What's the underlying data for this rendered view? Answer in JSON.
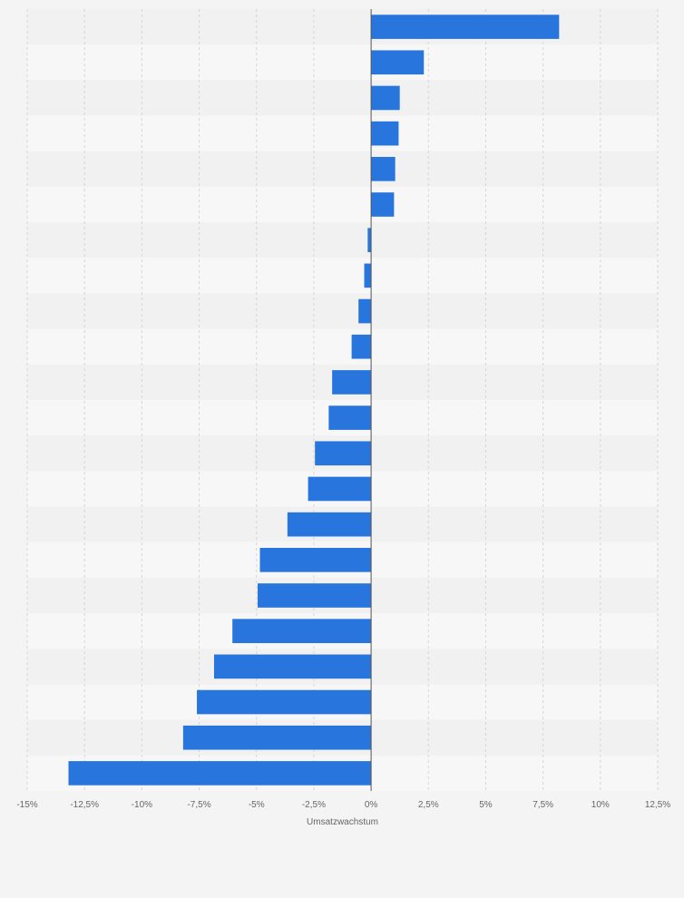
{
  "chart_data": {
    "type": "bar",
    "orientation": "horizontal",
    "title": "",
    "xlabel": "Umsatzwachstum",
    "ylabel": "",
    "xlim": [
      -15,
      12.5
    ],
    "x_ticks": [
      -15,
      -12.5,
      -10,
      -7.5,
      -5,
      -2.5,
      0,
      2.5,
      5,
      7.5,
      10,
      12.5
    ],
    "x_tick_labels": [
      "-15%",
      "-12,5%",
      "-10%",
      "-7,5%",
      "-5%",
      "-2,5%",
      "0%",
      "2,5%",
      "5%",
      "7,5%",
      "10%",
      "12,5%"
    ],
    "categories_visible": false,
    "values": [
      8.2,
      2.3,
      1.25,
      1.2,
      1.05,
      1.0,
      -0.15,
      -0.3,
      -0.55,
      -0.85,
      -1.7,
      -1.85,
      -2.45,
      -2.75,
      -3.65,
      -4.85,
      -4.95,
      -6.05,
      -6.85,
      -7.6,
      -8.2,
      -13.2
    ],
    "grid": "vertical",
    "bar_color": "#2876dd"
  }
}
